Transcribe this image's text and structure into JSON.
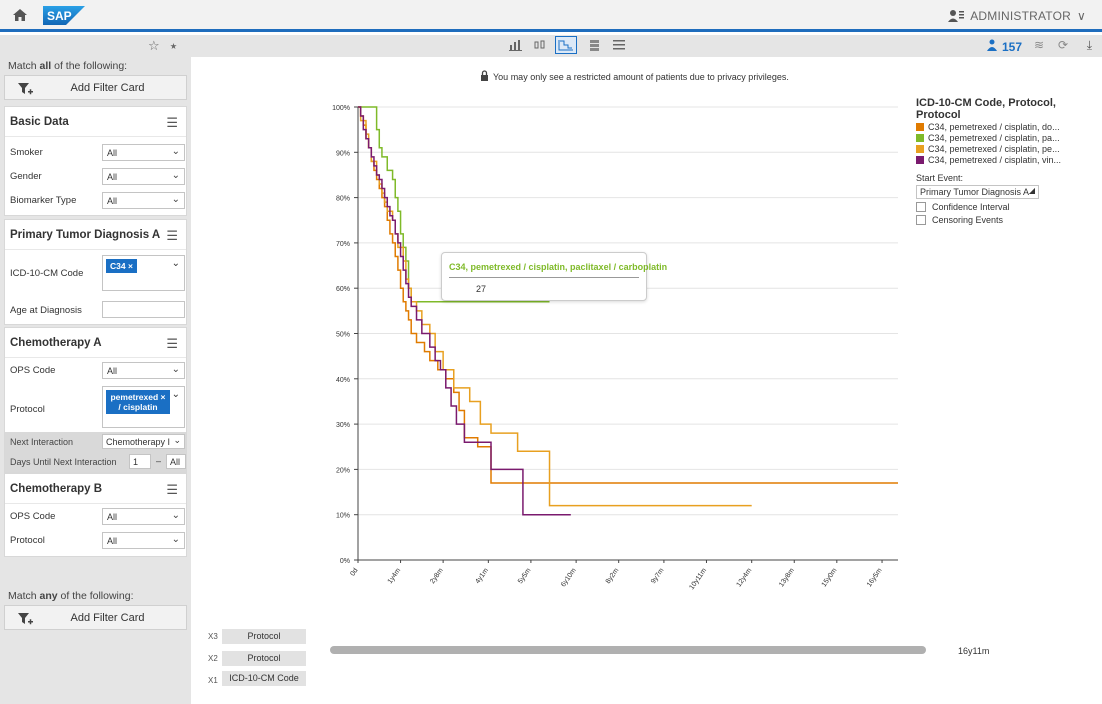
{
  "shell": {
    "user_label": "ADMINISTRATOR",
    "logo_text": "SAP"
  },
  "left": {
    "match_all_prefix": "Match ",
    "match_all_bold": "all",
    "match_all_suffix": " of the following:",
    "add_filter_label": "Add Filter Card",
    "cards": {
      "basic": {
        "title": "Basic Data",
        "smoker_label": "Smoker",
        "smoker_value": "All",
        "gender_label": "Gender",
        "gender_value": "All",
        "biomarker_label": "Biomarker Type",
        "biomarker_value": "All"
      },
      "primary": {
        "title": "Primary Tumor Diagnosis A",
        "icd_label": "ICD-10-CM Code",
        "icd_token": "C34 ×",
        "age_label": "Age at Diagnosis"
      },
      "chemoA": {
        "title": "Chemotherapy A",
        "ops_label": "OPS Code",
        "ops_value": "All",
        "protocol_label": "Protocol",
        "protocol_token_l1": "pemetrexed",
        "protocol_token_l2": "/ cisplatin",
        "next_label": "Next Interaction",
        "next_value": "Chemotherapy I",
        "days_label": "Days Until Next Interaction",
        "days_from": "1",
        "days_dash": "–",
        "days_to": "All"
      },
      "chemoB": {
        "title": "Chemotherapy B",
        "ops_label": "OPS Code",
        "ops_value": "All",
        "protocol_label": "Protocol",
        "protocol_value": "All"
      }
    },
    "match_any_prefix": "Match ",
    "match_any_bold": "any",
    "match_any_suffix": " of the following:",
    "add_filter_label_2": "Add Filter Card"
  },
  "toolbar": {
    "patient_count": "157"
  },
  "notice": "You may only see a restricted amount of patients due to privacy privileges.",
  "legend": {
    "title": "ICD-10-CM Code, Protocol, Protocol",
    "items": [
      {
        "label": "C34, pemetrexed / cisplatin, do...",
        "color": "#e07b00"
      },
      {
        "label": "C34, pemetrexed / cisplatin, pa...",
        "color": "#7fba29"
      },
      {
        "label": "C34, pemetrexed / cisplatin, pe...",
        "color": "#e8a020"
      },
      {
        "label": "C34, pemetrexed / cisplatin, vin...",
        "color": "#7a1a6e"
      }
    ],
    "start_event_label": "Start Event:",
    "start_event_value": "Primary Tumor Diagnosis A",
    "confidence_label": "Confidence Interval",
    "censoring_label": "Censoring Events"
  },
  "tooltip": {
    "title": "C34, pemetrexed / cisplatin, paclitaxel / carboplatin",
    "value": "27"
  },
  "axis_controls": {
    "x3_label": "X3",
    "x3_value": "Protocol",
    "x2_label": "X2",
    "x2_value": "Protocol",
    "x1_label": "X1",
    "x1_value": "ICD-10-CM Code",
    "range_label": "16y11m"
  },
  "chart_data": {
    "type": "line",
    "title": "",
    "xlabel": "",
    "ylabel": "",
    "ylim": [
      0,
      100
    ],
    "xlim": [
      0,
      203
    ],
    "x_ticks": [
      "0d",
      "1y4m",
      "2y8m",
      "4y1m",
      "5y5m",
      "6y10m",
      "8y2m",
      "9y7m",
      "10y11m",
      "12y4m",
      "13y8m",
      "15y0m",
      "16y5m"
    ],
    "x_tick_months": [
      0,
      16,
      32,
      49,
      65,
      82,
      98,
      115,
      131,
      148,
      164,
      180,
      197
    ],
    "y_ticks": [
      "0%",
      "10%",
      "20%",
      "30%",
      "40%",
      "50%",
      "60%",
      "70%",
      "80%",
      "90%",
      "100%"
    ],
    "grid": true,
    "legend_position": "right",
    "series": [
      {
        "name": "C34, pemetrexed / cisplatin, do...",
        "color": "#e07b00",
        "points": [
          [
            0,
            100
          ],
          [
            1,
            98
          ],
          [
            2,
            96
          ],
          [
            3,
            93
          ],
          [
            4,
            91
          ],
          [
            5,
            88
          ],
          [
            6,
            86
          ],
          [
            7,
            84
          ],
          [
            8,
            82
          ],
          [
            9,
            80
          ],
          [
            10,
            78
          ],
          [
            11,
            75
          ],
          [
            12,
            72
          ],
          [
            13,
            70
          ],
          [
            14,
            67
          ],
          [
            15,
            64
          ],
          [
            16,
            60
          ],
          [
            17,
            57
          ],
          [
            18,
            55
          ],
          [
            19,
            53
          ],
          [
            20,
            50
          ],
          [
            22,
            48
          ],
          [
            25,
            46
          ],
          [
            27,
            44
          ],
          [
            30,
            42
          ],
          [
            33,
            40
          ],
          [
            36,
            37
          ],
          [
            38,
            33
          ],
          [
            40,
            27
          ],
          [
            45,
            25
          ],
          [
            50,
            17
          ],
          [
            220,
            17
          ]
        ]
      },
      {
        "name": "C34, pemetrexed / cisplatin, pa...",
        "color": "#7fba29",
        "points": [
          [
            0,
            100
          ],
          [
            6,
            100
          ],
          [
            7,
            95
          ],
          [
            8,
            91
          ],
          [
            9,
            89
          ],
          [
            11,
            86
          ],
          [
            13,
            84
          ],
          [
            14,
            80
          ],
          [
            15,
            77
          ],
          [
            16,
            72
          ],
          [
            17,
            69
          ],
          [
            18,
            66
          ],
          [
            19,
            60
          ],
          [
            20,
            57
          ],
          [
            72,
            57
          ]
        ]
      },
      {
        "name": "C34, pemetrexed / cisplatin, pe...",
        "color": "#e8a020",
        "points": [
          [
            0,
            100
          ],
          [
            1,
            97
          ],
          [
            3,
            94
          ],
          [
            4,
            91
          ],
          [
            5,
            88
          ],
          [
            7,
            85
          ],
          [
            8,
            83
          ],
          [
            9,
            81
          ],
          [
            10,
            79
          ],
          [
            11,
            77
          ],
          [
            13,
            75
          ],
          [
            14,
            72
          ],
          [
            15,
            69
          ],
          [
            17,
            66
          ],
          [
            18,
            62
          ],
          [
            19,
            60
          ],
          [
            20,
            57
          ],
          [
            22,
            55
          ],
          [
            24,
            52
          ],
          [
            27,
            50
          ],
          [
            29,
            46
          ],
          [
            32,
            42
          ],
          [
            36,
            38
          ],
          [
            42,
            35
          ],
          [
            46,
            30
          ],
          [
            50,
            28
          ],
          [
            60,
            24
          ],
          [
            72,
            24
          ],
          [
            72,
            12
          ],
          [
            148,
            12
          ]
        ]
      },
      {
        "name": "C34, pemetrexed / cisplatin, vin...",
        "color": "#7a1a6e",
        "points": [
          [
            0,
            100
          ],
          [
            1,
            98
          ],
          [
            2,
            95
          ],
          [
            3,
            93
          ],
          [
            4,
            91
          ],
          [
            5,
            89
          ],
          [
            6,
            87
          ],
          [
            7,
            85
          ],
          [
            8,
            84
          ],
          [
            9,
            82
          ],
          [
            10,
            80
          ],
          [
            11,
            78
          ],
          [
            12,
            76
          ],
          [
            13,
            75
          ],
          [
            14,
            72
          ],
          [
            15,
            70
          ],
          [
            16,
            67
          ],
          [
            17,
            64
          ],
          [
            18,
            61
          ],
          [
            19,
            58
          ],
          [
            20,
            56
          ],
          [
            22,
            53
          ],
          [
            24,
            50
          ],
          [
            27,
            47
          ],
          [
            29,
            44
          ],
          [
            31,
            42
          ],
          [
            33,
            38
          ],
          [
            35,
            34
          ],
          [
            37,
            30
          ],
          [
            40,
            26
          ],
          [
            50,
            26
          ],
          [
            50,
            20
          ],
          [
            62,
            20
          ],
          [
            62,
            10
          ],
          [
            80,
            10
          ]
        ]
      }
    ]
  }
}
